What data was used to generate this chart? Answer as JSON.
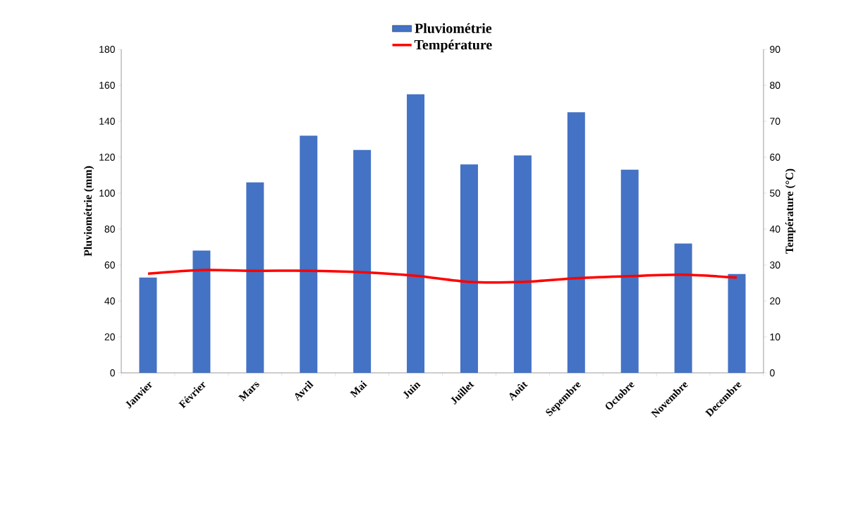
{
  "chart_data": {
    "type": "bar",
    "categories": [
      "Janvier",
      "Février",
      "Mars",
      "Avril",
      "Mai",
      "Juin",
      "Juillet",
      "Août",
      "Sepembre",
      "Octobre",
      "Novembre",
      "Decembre"
    ],
    "series": [
      {
        "name": "Pluviométrie",
        "color": "#4472c4",
        "values": [
          53,
          68,
          106,
          132,
          124,
          155,
          116,
          121,
          145,
          113,
          72,
          55
        ]
      },
      {
        "name": "Température",
        "type": "line",
        "axis": "y2",
        "color": "#ff0000",
        "values": [
          27.6,
          28.6,
          28.4,
          28.4,
          28,
          27,
          25.3,
          25.3,
          26.3,
          26.9,
          27.3,
          26.5
        ]
      }
    ],
    "ylabel": "Pluviométrie  (mm)",
    "y2label": "Température  (°C)",
    "ylim": [
      0,
      180
    ],
    "yticks": [
      0,
      20,
      40,
      60,
      80,
      100,
      120,
      140,
      160,
      180
    ],
    "y2lim": [
      0,
      90
    ],
    "y2ticks": [
      0,
      10,
      20,
      30,
      40,
      50,
      60,
      70,
      80,
      90
    ],
    "legend": "top",
    "grid": false
  }
}
